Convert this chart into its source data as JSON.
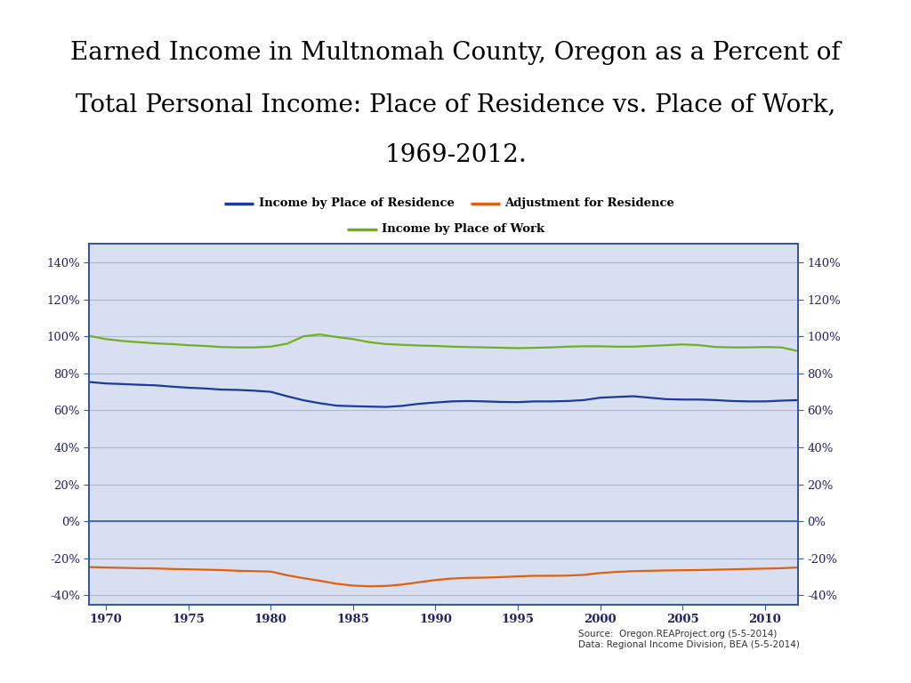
{
  "title_line1": "Earned Income in Multnomah County, Oregon as a Percent of",
  "title_line2": "Total Personal Income: Place of Residence vs. Place of Work,",
  "title_line3": "1969-2012.",
  "title_fontsize": 20,
  "title_color": "#000000",
  "bg_color": "#ccd2e0",
  "plot_bg_color": "#d8dff0",
  "source_text": "Source:  Oregon.REAProject.org (5-5-2014)\nData: Regional Income Division, BEA (5-5-2014)",
  "xlim": [
    1969,
    2012
  ],
  "ylim": [
    -0.45,
    1.5
  ],
  "yticks": [
    -0.4,
    -0.2,
    0.0,
    0.2,
    0.4,
    0.6,
    0.8,
    1.0,
    1.2,
    1.4
  ],
  "xticks": [
    1970,
    1975,
    1980,
    1985,
    1990,
    1995,
    2000,
    2005,
    2010
  ],
  "legend_labels": [
    "Income by Place of Residence",
    "Adjustment for Residence",
    "Income by Place of Work"
  ],
  "legend_colors": [
    "#1a3a9c",
    "#e06010",
    "#70b020"
  ],
  "line_residence": [
    0.753,
    0.745,
    0.742,
    0.738,
    0.735,
    0.728,
    0.722,
    0.718,
    0.712,
    0.71,
    0.706,
    0.7,
    0.676,
    0.654,
    0.638,
    0.625,
    0.622,
    0.62,
    0.618,
    0.624,
    0.635,
    0.642,
    0.648,
    0.65,
    0.648,
    0.645,
    0.644,
    0.648,
    0.648,
    0.65,
    0.655,
    0.668,
    0.672,
    0.676,
    0.668,
    0.66,
    0.658,
    0.658,
    0.655,
    0.65,
    0.648,
    0.648,
    0.652,
    0.655
  ],
  "line_adjustment": [
    -0.248,
    -0.25,
    -0.252,
    -0.254,
    -0.255,
    -0.258,
    -0.26,
    -0.262,
    -0.264,
    -0.268,
    -0.27,
    -0.272,
    -0.292,
    -0.308,
    -0.322,
    -0.338,
    -0.348,
    -0.352,
    -0.35,
    -0.342,
    -0.33,
    -0.318,
    -0.31,
    -0.306,
    -0.305,
    -0.302,
    -0.298,
    -0.295,
    -0.295,
    -0.294,
    -0.29,
    -0.28,
    -0.274,
    -0.27,
    -0.268,
    -0.266,
    -0.265,
    -0.264,
    -0.262,
    -0.26,
    -0.258,
    -0.256,
    -0.254,
    -0.25
  ],
  "line_work": [
    1.002,
    0.985,
    0.975,
    0.968,
    0.962,
    0.958,
    0.952,
    0.948,
    0.942,
    0.94,
    0.94,
    0.944,
    0.96,
    1.0,
    1.01,
    0.996,
    0.985,
    0.968,
    0.958,
    0.954,
    0.95,
    0.948,
    0.944,
    0.942,
    0.94,
    0.938,
    0.936,
    0.938,
    0.94,
    0.944,
    0.946,
    0.946,
    0.944,
    0.944,
    0.948,
    0.952,
    0.956,
    0.952,
    0.942,
    0.94,
    0.94,
    0.942,
    0.94,
    0.92
  ]
}
